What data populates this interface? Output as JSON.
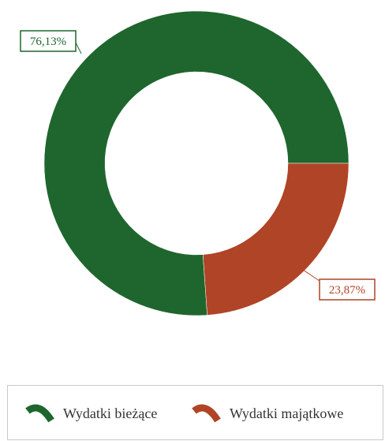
{
  "chart_data": {
    "type": "pie",
    "categories": [
      "Wydatki bieżące",
      "Wydatki majątkowe"
    ],
    "values": [
      76.13,
      23.87
    ],
    "data_labels": [
      "76,13%",
      "23,87%"
    ],
    "colors": [
      "#1e662e",
      "#b04426"
    ],
    "title": "",
    "legend_position": "bottom"
  },
  "legend": {
    "items": [
      {
        "label": "Wydatki bieżące",
        "color": "#1e662e"
      },
      {
        "label": "Wydatki majątkowe",
        "color": "#b04426"
      }
    ]
  }
}
